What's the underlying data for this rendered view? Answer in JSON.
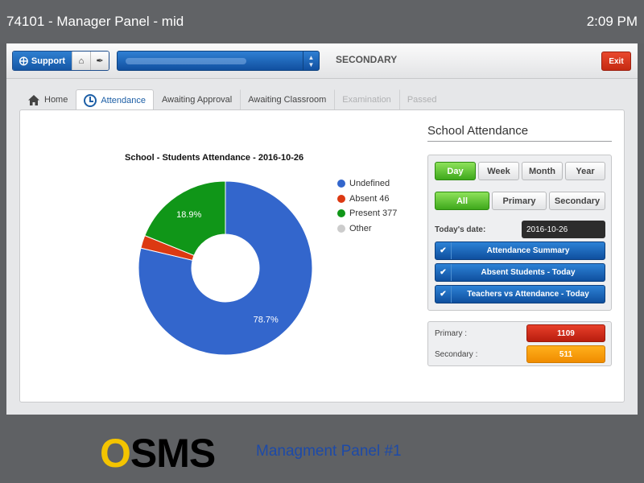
{
  "window": {
    "title": "74101 - Manager Panel - mid",
    "clock": "2:09 PM"
  },
  "toolbar": {
    "support_label": "Support",
    "section_label": "SECONDARY",
    "exit_label": "Exit"
  },
  "tabs": [
    {
      "label": "Home"
    },
    {
      "label": "Attendance"
    },
    {
      "label": "Awaiting Approval"
    },
    {
      "label": "Awaiting Classroom"
    },
    {
      "label": "Examination"
    },
    {
      "label": "Passed"
    }
  ],
  "chart_data": {
    "type": "pie",
    "title": "School - Students Attendance - 2016-10-26",
    "labels": [
      "Undefined",
      "Absent 46",
      "Present 377",
      "Other"
    ],
    "values": [
      78.7,
      2.4,
      18.9,
      0
    ],
    "data_labels": [
      "78.7%",
      "",
      "18.9%",
      ""
    ],
    "colors": [
      "#3366cc",
      "#dc3912",
      "#109618",
      "#cccccc"
    ],
    "legend": "right",
    "donut": true
  },
  "sidebar": {
    "title": "School Attendance",
    "periods": [
      "Day",
      "Week",
      "Month",
      "Year"
    ],
    "selected_period": "Day",
    "levels": [
      "All",
      "Primary",
      "Secondary"
    ],
    "selected_level": "All",
    "date_label": "Today's date:",
    "date_value": "2016-10-26",
    "actions": [
      "Attendance Summary",
      "Absent Students - Today",
      "Teachers vs Attendance - Today"
    ],
    "stats": [
      {
        "label": "Primary :",
        "value": "1109",
        "color": "#d62a17"
      },
      {
        "label": "Secondary :",
        "value": "511",
        "color": "#f7a10c"
      }
    ]
  },
  "footer": {
    "logo_first": "O",
    "logo_rest": "SMS",
    "subtitle": "Managment Panel #1"
  }
}
